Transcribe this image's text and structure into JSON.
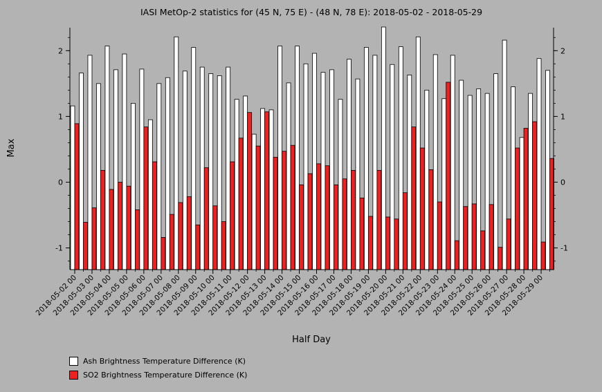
{
  "chart_data": {
    "type": "bar",
    "title": "IASI MetOp-2 statistics for (45 N, 75 E) - (48 N, 78 E): 2018-05-02 - 2018-05-29",
    "xlabel": "Half Day",
    "ylabel": "Max",
    "ylim": [
      -1.33,
      2.35
    ],
    "yticks": [
      -1,
      0,
      1,
      2
    ],
    "baseline": -1.33,
    "grid": false,
    "legend_position": "bottom-left",
    "x_tick_labels": [
      "2018-05-02 00",
      "2018-05-03 00",
      "2018-05-04 00",
      "2018-05-05 00",
      "2018-05-06 00",
      "2018-05-07 00",
      "2018-05-08 00",
      "2018-05-09 00",
      "2018-05-10 00",
      "2018-05-11 00",
      "2018-05-12 00",
      "2018-05-13 00",
      "2018-05-14 00",
      "2018-05-15 00",
      "2018-05-16 00",
      "2018-05-17 00",
      "2018-05-18 00",
      "2018-05-19 00",
      "2018-05-20 00",
      "2018-05-21 00",
      "2018-05-22 00",
      "2018-05-23 00",
      "2018-05-24 00",
      "2018-05-25 00",
      "2018-05-26 00",
      "2018-05-27 00",
      "2018-05-28 00",
      "2018-05-29 00"
    ],
    "series": [
      {
        "name": "Ash Brightness Temperature Difference (K)",
        "color": "#ffffff",
        "values": [
          1.16,
          1.66,
          1.93,
          1.5,
          2.07,
          1.71,
          1.95,
          1.2,
          1.72,
          0.95,
          1.5,
          1.59,
          2.21,
          1.69,
          2.05,
          1.75,
          1.65,
          1.62,
          1.75,
          1.26,
          1.31,
          0.73,
          1.12,
          1.1,
          2.07,
          1.51,
          2.07,
          1.8,
          1.96,
          1.67,
          1.71,
          1.26,
          1.87,
          1.57,
          2.05,
          1.93,
          2.36,
          1.79,
          2.06,
          1.63,
          2.21,
          1.4,
          1.94,
          1.27,
          1.93,
          1.55,
          1.32,
          1.42,
          1.35,
          1.65,
          2.16,
          1.45,
          0.68,
          1.35,
          1.88,
          1.7
        ]
      },
      {
        "name": "SO2 Brightness Temperature Difference (K)",
        "color": "#ee2020",
        "values": [
          0.89,
          -0.61,
          -0.39,
          0.18,
          -0.11,
          0.0,
          -0.06,
          -0.42,
          0.84,
          0.31,
          -0.84,
          -0.49,
          -0.31,
          -0.22,
          -0.65,
          0.22,
          -0.36,
          -0.6,
          0.31,
          0.67,
          1.06,
          0.55,
          1.07,
          0.38,
          0.47,
          0.56,
          -0.04,
          0.13,
          0.28,
          0.25,
          -0.04,
          0.05,
          0.18,
          -0.24,
          -0.52,
          0.18,
          -0.53,
          -0.56,
          -0.16,
          0.84,
          0.52,
          0.19,
          -0.3,
          1.52,
          -0.89,
          -0.37,
          -0.33,
          -0.74,
          -0.34,
          -0.99,
          -0.56,
          0.52,
          0.82,
          0.92,
          -0.91,
          0.36
        ]
      }
    ]
  }
}
